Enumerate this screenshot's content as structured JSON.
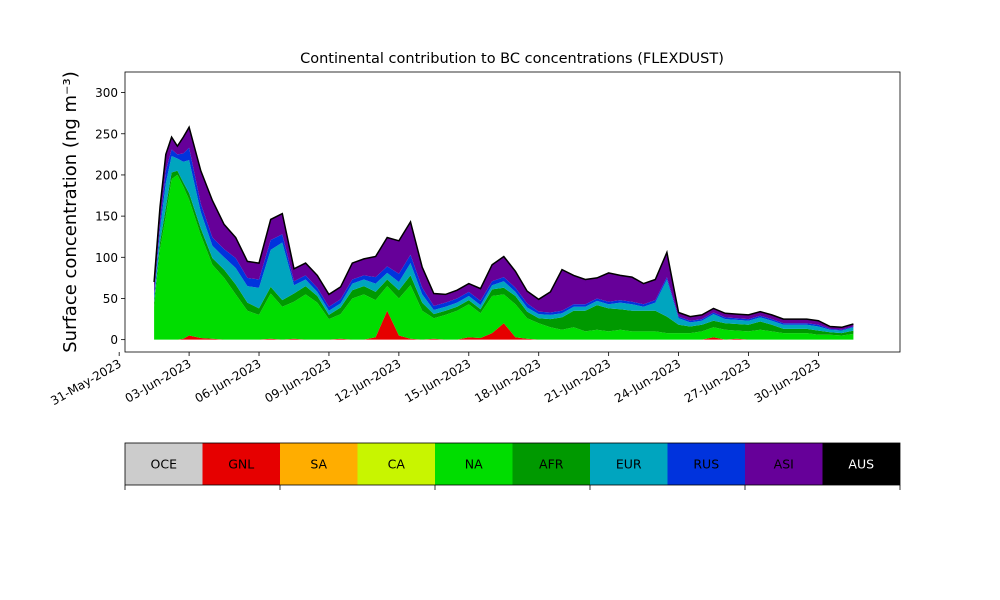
{
  "chart_data": {
    "type": "area",
    "stacked": true,
    "title": "Continental contribution to BC concentrations (FLEXDUST)",
    "ylabel": "Surface concentration (ng m⁻³)",
    "xlabel": "",
    "ylim": [
      -15,
      325
    ],
    "xlim": [
      "2023-05-31T06:00",
      "2023-07-03T12:00"
    ],
    "yticks": [
      0,
      50,
      100,
      150,
      200,
      250,
      300
    ],
    "xticks": [
      "2023-05-31",
      "2023-06-03",
      "2023-06-06",
      "2023-06-09",
      "2023-06-12",
      "2023-06-15",
      "2023-06-18",
      "2023-06-21",
      "2023-06-24",
      "2023-06-27",
      "2023-06-30"
    ],
    "xtick_labels": [
      "31-May-2023",
      "03-Jun-2023",
      "06-Jun-2023",
      "09-Jun-2023",
      "12-Jun-2023",
      "15-Jun-2023",
      "18-Jun-2023",
      "21-Jun-2023",
      "24-Jun-2023",
      "27-Jun-2023",
      "30-Jun-2023"
    ],
    "grid": false,
    "legend_placement": "bottom colorbar",
    "x": [
      "2023-06-01T12:00",
      "2023-06-01T18:00",
      "2023-06-02T00:00",
      "2023-06-02T06:00",
      "2023-06-02T12:00",
      "2023-06-02T18:00",
      "2023-06-03T00:00",
      "2023-06-03T12:00",
      "2023-06-04T00:00",
      "2023-06-04T12:00",
      "2023-06-05T00:00",
      "2023-06-05T12:00",
      "2023-06-06T00:00",
      "2023-06-06T12:00",
      "2023-06-07T00:00",
      "2023-06-07T12:00",
      "2023-06-08T00:00",
      "2023-06-08T12:00",
      "2023-06-09T00:00",
      "2023-06-09T12:00",
      "2023-06-10T00:00",
      "2023-06-10T12:00",
      "2023-06-11T00:00",
      "2023-06-11T12:00",
      "2023-06-12T00:00",
      "2023-06-12T12:00",
      "2023-06-13T00:00",
      "2023-06-13T12:00",
      "2023-06-14T00:00",
      "2023-06-14T12:00",
      "2023-06-15T00:00",
      "2023-06-15T12:00",
      "2023-06-16T00:00",
      "2023-06-16T12:00",
      "2023-06-17T00:00",
      "2023-06-17T12:00",
      "2023-06-18T00:00",
      "2023-06-18T12:00",
      "2023-06-19T00:00",
      "2023-06-19T12:00",
      "2023-06-20T00:00",
      "2023-06-20T12:00",
      "2023-06-21T00:00",
      "2023-06-21T12:00",
      "2023-06-22T00:00",
      "2023-06-22T12:00",
      "2023-06-23T00:00",
      "2023-06-23T12:00",
      "2023-06-24T00:00",
      "2023-06-24T12:00",
      "2023-06-25T00:00",
      "2023-06-25T12:00",
      "2023-06-26T00:00",
      "2023-06-26T12:00",
      "2023-06-27T00:00",
      "2023-06-27T12:00",
      "2023-06-28T00:00",
      "2023-06-28T12:00",
      "2023-06-29T00:00",
      "2023-06-29T12:00",
      "2023-06-30T00:00",
      "2023-06-30T12:00",
      "2023-07-01T00:00",
      "2023-07-01T12:00"
    ],
    "series": [
      {
        "name": "OCE",
        "color": "#cccccc",
        "values": [
          0,
          0,
          0,
          0,
          0,
          0,
          0,
          0,
          0,
          0,
          0,
          0,
          0,
          0,
          0,
          0,
          0,
          0,
          0,
          0,
          0,
          0,
          0,
          0,
          0,
          0,
          0,
          0,
          0,
          0,
          0,
          0,
          0,
          0,
          0,
          0,
          0,
          0,
          0,
          0,
          0,
          0,
          0,
          0,
          0,
          0,
          0,
          0,
          0,
          0,
          0,
          0,
          0,
          0,
          0,
          0,
          0,
          0,
          0,
          0,
          0,
          0,
          0,
          0
        ]
      },
      {
        "name": "GNL",
        "color": "#e60000",
        "values": [
          0,
          0,
          0,
          0,
          0,
          1,
          5,
          2,
          1,
          0,
          0,
          0,
          0,
          1,
          0,
          1,
          0,
          0,
          0,
          1,
          0,
          0,
          3,
          35,
          5,
          1,
          0,
          1,
          0,
          0,
          3,
          2,
          8,
          20,
          3,
          1,
          0,
          0,
          0,
          0,
          0,
          0,
          0,
          0,
          0,
          0,
          0,
          0,
          0,
          0,
          0,
          3,
          0,
          1,
          0,
          0,
          0,
          0,
          0,
          0,
          0,
          0,
          0,
          0
        ]
      },
      {
        "name": "SA",
        "color": "#ffad00",
        "values": [
          0,
          0,
          0,
          0,
          0,
          0,
          0,
          0,
          0,
          0,
          0,
          0,
          0,
          0,
          0,
          0,
          0,
          0,
          0,
          0,
          0,
          0,
          0,
          0,
          0,
          0,
          0,
          0,
          0,
          0,
          0,
          0,
          0,
          0,
          0,
          0,
          0,
          0,
          0,
          0,
          0,
          0,
          0,
          0,
          0,
          0,
          0,
          0,
          0,
          0,
          0,
          0,
          0,
          0,
          0,
          0,
          0,
          0,
          0,
          0,
          0,
          0,
          0,
          0
        ]
      },
      {
        "name": "CA",
        "color": "#c8f500",
        "values": [
          0,
          0,
          0,
          0,
          0,
          0,
          0,
          0,
          0,
          0,
          0,
          0,
          0,
          0,
          0,
          0,
          0,
          0,
          0,
          0,
          0,
          0,
          0,
          0,
          0,
          0,
          0,
          0,
          0,
          0,
          0,
          0,
          0,
          0,
          0,
          0,
          0,
          0,
          0,
          0,
          0,
          0,
          0,
          0,
          0,
          0,
          0,
          0,
          0,
          0,
          0,
          0,
          0,
          0,
          0,
          0,
          0,
          0,
          0,
          0,
          0,
          0,
          0,
          0
        ]
      },
      {
        "name": "NA",
        "color": "#00dd00",
        "values": [
          40,
          110,
          150,
          195,
          200,
          185,
          165,
          125,
          90,
          75,
          55,
          35,
          30,
          55,
          40,
          45,
          55,
          45,
          25,
          30,
          50,
          55,
          45,
          30,
          45,
          65,
          35,
          25,
          30,
          35,
          40,
          30,
          45,
          35,
          40,
          25,
          20,
          15,
          12,
          15,
          10,
          12,
          10,
          12,
          10,
          10,
          10,
          8,
          8,
          8,
          10,
          12,
          12,
          10,
          10,
          12,
          10,
          8,
          8,
          8,
          6,
          6,
          5,
          7
        ]
      },
      {
        "name": "AFR",
        "color": "#009900",
        "values": [
          5,
          8,
          10,
          8,
          5,
          5,
          8,
          8,
          8,
          10,
          12,
          10,
          8,
          8,
          8,
          10,
          10,
          8,
          5,
          8,
          10,
          10,
          10,
          8,
          10,
          12,
          10,
          5,
          5,
          5,
          5,
          5,
          8,
          8,
          10,
          8,
          6,
          10,
          15,
          20,
          25,
          30,
          28,
          25,
          25,
          25,
          25,
          20,
          10,
          8,
          8,
          8,
          8,
          8,
          8,
          10,
          8,
          5,
          5,
          5,
          5,
          3,
          3,
          4
        ]
      },
      {
        "name": "EUR",
        "color": "#00a5bf",
        "values": [
          5,
          15,
          30,
          20,
          15,
          25,
          40,
          20,
          15,
          15,
          20,
          20,
          25,
          45,
          70,
          10,
          8,
          5,
          5,
          5,
          8,
          8,
          10,
          8,
          10,
          15,
          10,
          5,
          5,
          5,
          5,
          5,
          5,
          8,
          5,
          5,
          5,
          5,
          5,
          5,
          5,
          5,
          5,
          8,
          8,
          5,
          10,
          45,
          8,
          5,
          5,
          8,
          5,
          5,
          5,
          5,
          5,
          5,
          5,
          5,
          5,
          3,
          3,
          4
        ]
      },
      {
        "name": "RUS",
        "color": "#0033dd",
        "values": [
          5,
          8,
          15,
          8,
          5,
          10,
          15,
          10,
          10,
          10,
          12,
          10,
          10,
          12,
          10,
          5,
          5,
          5,
          5,
          5,
          5,
          5,
          8,
          8,
          10,
          10,
          8,
          5,
          5,
          5,
          5,
          5,
          5,
          5,
          5,
          5,
          3,
          3,
          3,
          3,
          3,
          3,
          3,
          3,
          3,
          3,
          3,
          3,
          2,
          2,
          2,
          2,
          2,
          2,
          2,
          2,
          2,
          2,
          2,
          2,
          2,
          1,
          1,
          1
        ]
      },
      {
        "name": "ASI",
        "color": "#660099",
        "values": [
          15,
          20,
          20,
          15,
          10,
          20,
          25,
          40,
          45,
          30,
          25,
          20,
          20,
          25,
          25,
          15,
          15,
          15,
          15,
          15,
          20,
          20,
          25,
          35,
          40,
          40,
          25,
          15,
          10,
          10,
          10,
          15,
          20,
          25,
          20,
          15,
          15,
          25,
          50,
          35,
          30,
          25,
          35,
          30,
          30,
          25,
          25,
          30,
          5,
          5,
          5,
          5,
          5,
          5,
          5,
          5,
          5,
          5,
          5,
          5,
          5,
          3,
          3,
          3
        ]
      },
      {
        "name": "AUS",
        "color": "#000000",
        "values": [
          0,
          0,
          0,
          0,
          0,
          0,
          0,
          0,
          0,
          0,
          0,
          0,
          0,
          0,
          0,
          0,
          0,
          0,
          0,
          0,
          0,
          0,
          0,
          0,
          0,
          0,
          0,
          0,
          0,
          0,
          0,
          0,
          0,
          0,
          0,
          0,
          0,
          0,
          0,
          0,
          0,
          0,
          0,
          0,
          0,
          0,
          0,
          0,
          0,
          0,
          0,
          0,
          0,
          0,
          0,
          0,
          0,
          0,
          0,
          0,
          0,
          0,
          0,
          0
        ]
      }
    ]
  }
}
